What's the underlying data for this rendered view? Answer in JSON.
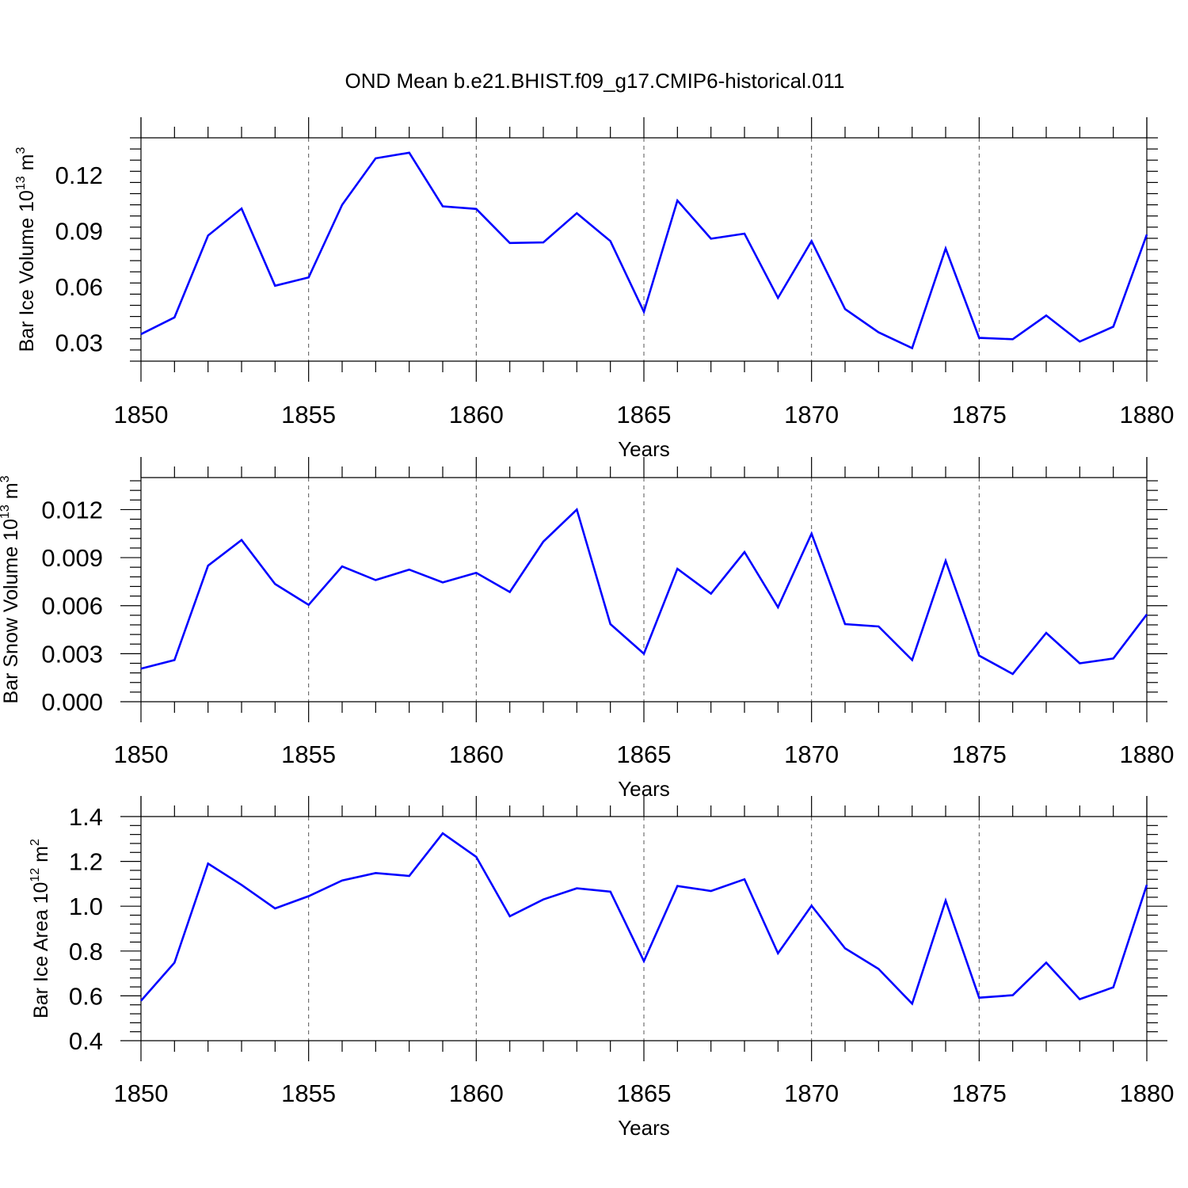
{
  "title": "OND Mean b.e21.BHIST.f09_g17.CMIP6-historical.011",
  "line_color": "#0000ff",
  "chart_data": [
    {
      "type": "line",
      "title": "OND Mean b.e21.BHIST.f09_g17.CMIP6-historical.011",
      "xlabel": "Years",
      "ylabel": {
        "main": "Bar Ice Volume 10",
        "exp": "13",
        "unit": " m",
        "unit_exp": "3"
      },
      "xlim": [
        1850,
        1880
      ],
      "ylim": [
        0.02,
        0.14
      ],
      "yticks": [
        0.03,
        0.06,
        0.09,
        0.12
      ],
      "ytick_labels": [
        "0.03",
        "0.06",
        "0.09",
        "0.12"
      ],
      "xticks": [
        1850,
        1855,
        1860,
        1865,
        1870,
        1875,
        1880
      ],
      "xtick_labels": [
        "1850",
        "1855",
        "1860",
        "1865",
        "1870",
        "1875",
        "1880"
      ],
      "x": [
        1850,
        1851,
        1852,
        1853,
        1854,
        1855,
        1856,
        1857,
        1858,
        1859,
        1860,
        1861,
        1862,
        1863,
        1864,
        1865,
        1866,
        1867,
        1868,
        1869,
        1870,
        1871,
        1872,
        1873,
        1874,
        1875,
        1876,
        1877,
        1878,
        1879,
        1880
      ],
      "values": [
        0.0345,
        0.0435,
        0.0875,
        0.102,
        0.0605,
        0.065,
        0.104,
        0.129,
        0.132,
        0.1032,
        0.1018,
        0.0835,
        0.0838,
        0.0995,
        0.0845,
        0.0465,
        0.1063,
        0.0858,
        0.0885,
        0.054,
        0.0845,
        0.048,
        0.0355,
        0.027,
        0.0805,
        0.0325,
        0.0318,
        0.0445,
        0.0305,
        0.0385,
        0.088
      ]
    },
    {
      "type": "line",
      "xlabel": "Years",
      "ylabel": {
        "main": "Bar Snow Volume 10",
        "exp": "13",
        "unit": " m",
        "unit_exp": "3"
      },
      "xlim": [
        1850,
        1880
      ],
      "ylim": [
        0.0,
        0.014
      ],
      "yticks": [
        0.0,
        0.003,
        0.006,
        0.009,
        0.012
      ],
      "ytick_labels": [
        "0.000",
        "0.003",
        "0.006",
        "0.009",
        "0.012"
      ],
      "xticks": [
        1850,
        1855,
        1860,
        1865,
        1870,
        1875,
        1880
      ],
      "xtick_labels": [
        "1850",
        "1855",
        "1860",
        "1865",
        "1870",
        "1875",
        "1880"
      ],
      "x": [
        1850,
        1851,
        1852,
        1853,
        1854,
        1855,
        1856,
        1857,
        1858,
        1859,
        1860,
        1861,
        1862,
        1863,
        1864,
        1865,
        1866,
        1867,
        1868,
        1869,
        1870,
        1871,
        1872,
        1873,
        1874,
        1875,
        1876,
        1877,
        1878,
        1879,
        1880
      ],
      "values": [
        0.00207,
        0.0026,
        0.0085,
        0.0101,
        0.00735,
        0.00605,
        0.00845,
        0.0076,
        0.00825,
        0.00745,
        0.00805,
        0.00685,
        0.01,
        0.012,
        0.00485,
        0.003,
        0.0083,
        0.00675,
        0.00935,
        0.0059,
        0.0105,
        0.00485,
        0.0047,
        0.0026,
        0.0088,
        0.00288,
        0.00173,
        0.0043,
        0.0024,
        0.0027,
        0.00545
      ]
    },
    {
      "type": "line",
      "xlabel": "Years",
      "ylabel": {
        "main": "Bar Ice Area 10",
        "exp": "12",
        "unit": " m",
        "unit_exp": "2"
      },
      "xlim": [
        1850,
        1880
      ],
      "ylim": [
        0.4,
        1.4
      ],
      "yticks": [
        0.4,
        0.6,
        0.8,
        1.0,
        1.2,
        1.4
      ],
      "ytick_labels": [
        "0.4",
        "0.6",
        "0.8",
        "1.0",
        "1.2",
        "1.4"
      ],
      "xticks": [
        1850,
        1855,
        1860,
        1865,
        1870,
        1875,
        1880
      ],
      "xtick_labels": [
        "1850",
        "1855",
        "1860",
        "1865",
        "1870",
        "1875",
        "1880"
      ],
      "x": [
        1850,
        1851,
        1852,
        1853,
        1854,
        1855,
        1856,
        1857,
        1858,
        1859,
        1860,
        1861,
        1862,
        1863,
        1864,
        1865,
        1866,
        1867,
        1868,
        1869,
        1870,
        1871,
        1872,
        1873,
        1874,
        1875,
        1876,
        1877,
        1878,
        1879,
        1880
      ],
      "values": [
        0.578,
        0.748,
        1.19,
        1.095,
        0.99,
        1.045,
        1.115,
        1.148,
        1.135,
        1.325,
        1.22,
        0.955,
        1.03,
        1.08,
        1.065,
        0.755,
        1.09,
        1.068,
        1.12,
        0.79,
        1.002,
        0.812,
        0.72,
        0.565,
        1.025,
        0.592,
        0.603,
        0.748,
        0.585,
        0.638,
        1.095
      ]
    }
  ]
}
